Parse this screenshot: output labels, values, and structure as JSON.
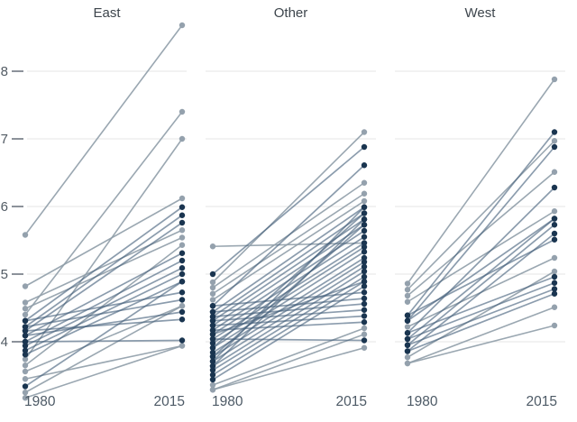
{
  "chart_data": {
    "type": "line",
    "subtype": "slopegraph",
    "title": "",
    "legend": "none",
    "grid": "horizontal-only",
    "x_years": [
      "1980",
      "2015"
    ],
    "y_ticks": [
      8,
      7,
      6,
      5,
      4
    ],
    "ylim": [
      3.0,
      8.9
    ],
    "point_groups": {
      "L": "#94a1ad",
      "D": "#1a3550"
    },
    "line_groups": {
      "L": "#8f9da9",
      "D": "#43607a"
    },
    "panels": [
      {
        "label": "East",
        "lines": [
          [
            5.58,
            8.68,
            "L"
          ],
          [
            4.4,
            7.4,
            "L"
          ],
          [
            3.74,
            7.0,
            "L"
          ],
          [
            4.82,
            6.12,
            "L"
          ],
          [
            4.58,
            5.65,
            "L"
          ],
          [
            4.49,
            5.54,
            "L"
          ],
          [
            3.65,
            5.43,
            "L"
          ],
          [
            3.56,
            4.53,
            "L"
          ],
          [
            3.45,
            3.94,
            "L"
          ],
          [
            3.25,
            4.53,
            "L"
          ],
          [
            3.17,
            3.94,
            "L"
          ],
          [
            4.31,
            5.99,
            "D"
          ],
          [
            4.22,
            5.87,
            "D"
          ],
          [
            4.16,
            5.76,
            "D"
          ],
          [
            4.09,
            5.31,
            "D"
          ],
          [
            4.0,
            5.2,
            "D"
          ],
          [
            3.94,
            5.09,
            "D"
          ],
          [
            3.87,
            5.0,
            "D"
          ],
          [
            3.81,
            4.89,
            "D"
          ],
          [
            4.31,
            4.73,
            "D"
          ],
          [
            4.22,
            4.62,
            "D"
          ],
          [
            4.09,
            4.44,
            "D"
          ],
          [
            4.16,
            4.33,
            "D"
          ],
          [
            4.0,
            4.02,
            "D"
          ],
          [
            3.34,
            4.89,
            "D"
          ]
        ]
      },
      {
        "label": "Other",
        "lines": [
          [
            5.41,
            5.46,
            "L"
          ],
          [
            4.88,
            7.1,
            "L"
          ],
          [
            4.8,
            6.35,
            "L"
          ],
          [
            4.71,
            6.19,
            "L"
          ],
          [
            4.62,
            6.08,
            "L"
          ],
          [
            3.36,
            4.2,
            "L"
          ],
          [
            3.29,
            4.11,
            "L"
          ],
          [
            3.29,
            3.91,
            "L"
          ],
          [
            5.0,
            6.88,
            "D"
          ],
          [
            4.53,
            6.61,
            "D"
          ],
          [
            4.44,
            5.99,
            "D"
          ],
          [
            4.37,
            5.9,
            "D"
          ],
          [
            4.31,
            5.81,
            "D"
          ],
          [
            4.24,
            5.73,
            "D"
          ],
          [
            4.17,
            5.64,
            "D"
          ],
          [
            4.11,
            5.55,
            "D"
          ],
          [
            4.04,
            5.46,
            "D"
          ],
          [
            3.98,
            5.4,
            "D"
          ],
          [
            3.91,
            5.33,
            "D"
          ],
          [
            3.84,
            5.24,
            "D"
          ],
          [
            3.78,
            5.18,
            "D"
          ],
          [
            3.71,
            5.11,
            "D"
          ],
          [
            3.64,
            5.04,
            "D"
          ],
          [
            3.58,
            4.96,
            "D"
          ],
          [
            3.51,
            4.89,
            "D"
          ],
          [
            3.44,
            4.82,
            "D"
          ],
          [
            4.53,
            4.73,
            "D"
          ],
          [
            4.44,
            4.64,
            "D"
          ],
          [
            4.37,
            4.56,
            "D"
          ],
          [
            4.31,
            4.47,
            "D"
          ],
          [
            4.24,
            4.38,
            "D"
          ],
          [
            4.17,
            4.29,
            "D"
          ],
          [
            4.04,
            4.02,
            "D"
          ],
          [
            3.71,
            5.99,
            "D"
          ],
          [
            3.64,
            5.81,
            "D"
          ],
          [
            3.78,
            5.73,
            "D"
          ],
          [
            3.91,
            5.9,
            "D"
          ],
          [
            4.11,
            4.89,
            "D"
          ]
        ]
      },
      {
        "label": "West",
        "lines": [
          [
            4.86,
            7.88,
            "L"
          ],
          [
            4.77,
            6.97,
            "L"
          ],
          [
            4.68,
            6.51,
            "L"
          ],
          [
            4.59,
            5.93,
            "L"
          ],
          [
            4.22,
            5.24,
            "L"
          ],
          [
            3.77,
            5.04,
            "L"
          ],
          [
            3.68,
            4.51,
            "L"
          ],
          [
            3.68,
            4.24,
            "L"
          ],
          [
            4.39,
            7.1,
            "D"
          ],
          [
            4.31,
            6.88,
            "D"
          ],
          [
            4.13,
            6.28,
            "D"
          ],
          [
            4.04,
            5.82,
            "D"
          ],
          [
            3.95,
            5.73,
            "D"
          ],
          [
            3.86,
            5.6,
            "D"
          ],
          [
            4.39,
            5.51,
            "D"
          ],
          [
            4.13,
            4.96,
            "D"
          ],
          [
            4.04,
            4.87,
            "D"
          ],
          [
            3.95,
            4.78,
            "D"
          ],
          [
            3.86,
            4.71,
            "D"
          ],
          [
            4.31,
            5.82,
            "D"
          ]
        ]
      }
    ]
  },
  "colors": {
    "background": "#ffffff",
    "gridline": "#e4e4e4",
    "axis_tick": "#5a646e",
    "axis_text": "#525b64",
    "x_label_text": "#4d5a66",
    "title_text": "#3d454c",
    "point_light": "#94a1ad",
    "point_dark": "#1a3550",
    "line_light": "#8f9da9",
    "line_dark": "#43607a"
  }
}
